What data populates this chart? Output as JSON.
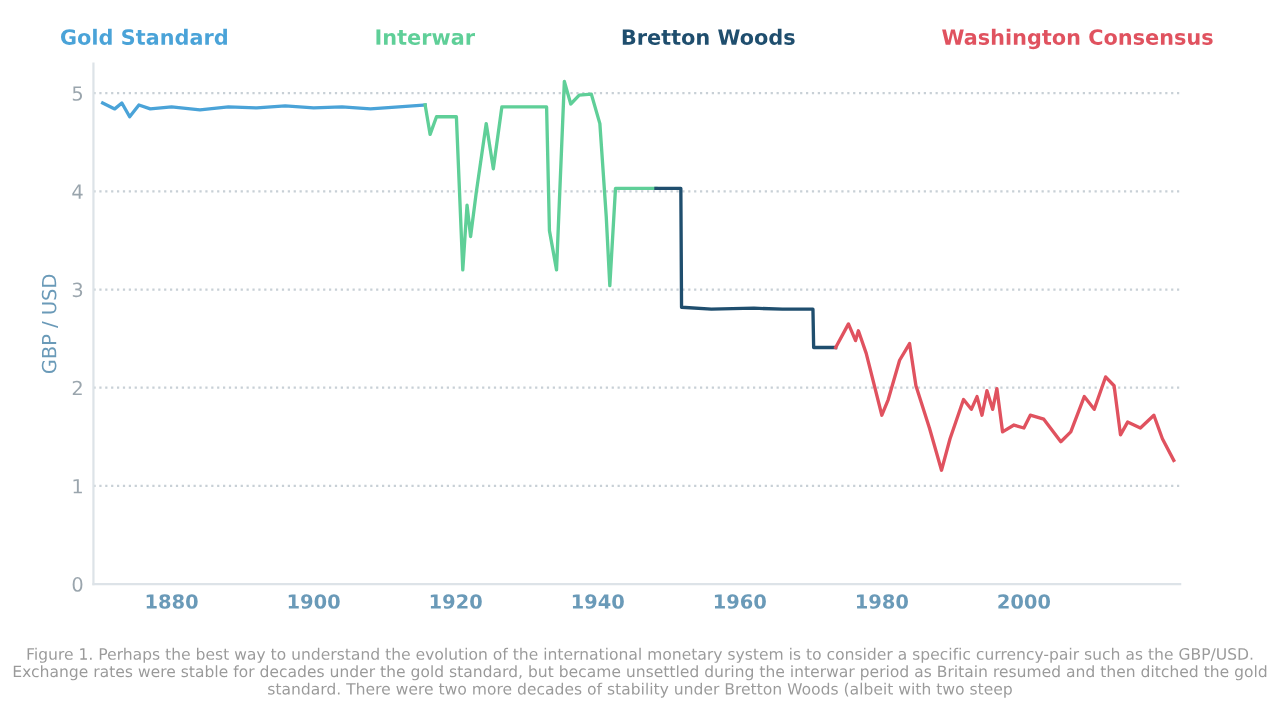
{
  "chart_data": {
    "type": "line",
    "ylabel": "GBP / USD",
    "xlim": [
      1869,
      2022
    ],
    "xticks": [
      1880,
      1900,
      1920,
      1940,
      1960,
      1980,
      2000
    ],
    "ylim": [
      0,
      5.3
    ],
    "yticks": [
      0,
      1,
      2,
      3,
      4,
      5
    ],
    "grid": "y",
    "legend": "top",
    "marker": "none",
    "line_style": "solid",
    "series": [
      {
        "name": "Gold Standard",
        "color": "#4aa3d8",
        "x": [
          1870.3,
          1872,
          1873,
          1874.1,
          1875.4,
          1877,
          1880,
          1884,
          1888,
          1892,
          1896,
          1900,
          1904,
          1908,
          1912,
          1915.7
        ],
        "values": [
          4.9,
          4.84,
          4.9,
          4.76,
          4.88,
          4.84,
          4.86,
          4.83,
          4.86,
          4.85,
          4.87,
          4.85,
          4.86,
          4.84,
          4.86,
          4.88
        ]
      },
      {
        "name": "Interwar",
        "color": "#5fcf98",
        "x": [
          1915.7,
          1916.4,
          1917.3,
          1920.1,
          1921,
          1921.6,
          1922.1,
          1922.9,
          1924.3,
          1925.3,
          1926.5,
          1932.8,
          1933.2,
          1934.2,
          1935.3,
          1936.2,
          1937.4,
          1939.1,
          1940.3,
          1941.2,
          1941.7,
          1942.5,
          1945.5,
          1948.2
        ],
        "values": [
          4.88,
          4.58,
          4.76,
          4.76,
          3.2,
          3.86,
          3.54,
          3.99,
          4.69,
          4.23,
          4.86,
          4.86,
          3.6,
          3.2,
          5.12,
          4.89,
          4.98,
          4.99,
          4.69,
          3.74,
          3.04,
          4.03,
          4.03,
          4.03
        ]
      },
      {
        "name": "Bretton Woods",
        "color": "#1f4e6e",
        "x": [
          1948.2,
          1951.7,
          1951.8,
          1956,
          1962,
          1966,
          1970.3,
          1970.4,
          1973.5
        ],
        "values": [
          4.03,
          4.03,
          2.82,
          2.8,
          2.81,
          2.8,
          2.8,
          2.41,
          2.41
        ]
      },
      {
        "name": "Washington Consensus",
        "color": "#e0525f",
        "x": [
          1973.5,
          1975.3,
          1976.3,
          1976.7,
          1977.8,
          1980.0,
          1980.9,
          1982.5,
          1983.9,
          1984.8,
          1986.7,
          1988.4,
          1989.6,
          1991.5,
          1992.6,
          1993.4,
          1994.1,
          1994.8,
          1995.6,
          1996.2,
          1997.0,
          1998.6,
          2000.0,
          2000.9,
          2002.8,
          2005.2,
          2006.6,
          2008.5,
          2009.9,
          2011.5,
          2012.7,
          2013.6,
          2014.6,
          2016.4,
          2018.3,
          2019.5,
          2021.1
        ],
        "values": [
          2.41,
          2.65,
          2.48,
          2.58,
          2.35,
          1.72,
          1.88,
          2.28,
          2.45,
          2.02,
          1.59,
          1.16,
          1.48,
          1.88,
          1.78,
          1.91,
          1.72,
          1.97,
          1.78,
          1.99,
          1.55,
          1.62,
          1.59,
          1.72,
          1.68,
          1.45,
          1.55,
          1.91,
          1.78,
          2.11,
          2.02,
          1.52,
          1.65,
          1.59,
          1.72,
          1.48,
          1.26
        ]
      }
    ],
    "annotations": [
      "Figure 1. Perhaps the best way to understand the evolution of the international monetary system is to consider a specific currency-pair such as the GBP/USD. Exchange rates were stable for decades under the gold standard, but became unsettled during the interwar period as Britain resumed and then ditched the gold standard. There were two more decades of stability under Bretton Woods (albeit with two steep"
    ]
  }
}
